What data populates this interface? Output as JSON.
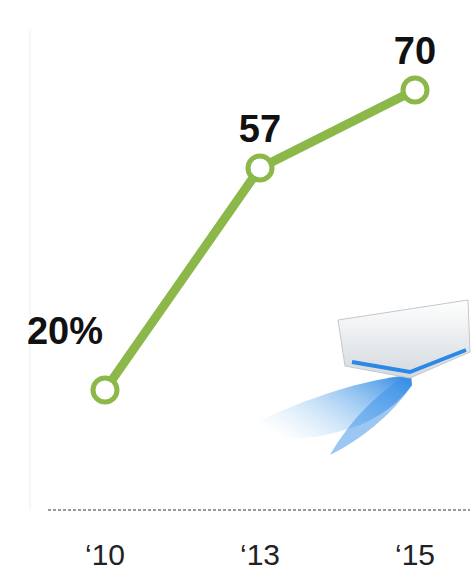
{
  "chart_data": {
    "type": "line",
    "categories": [
      "‘10",
      "‘13",
      "‘15"
    ],
    "values": [
      20,
      57,
      70
    ],
    "value_labels": [
      "20%",
      "57",
      "70"
    ],
    "color": "#8cb84a",
    "marker": "circle",
    "line_style": "solid",
    "ylim": [
      0,
      80
    ],
    "data_labels": true,
    "tick_labels": "x",
    "grid": false
  }
}
